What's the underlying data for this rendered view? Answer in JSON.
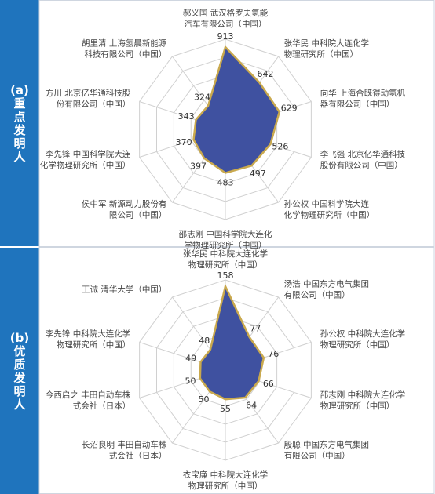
{
  "chart_data": [
    {
      "type": "radar",
      "panel_label": "(a)",
      "panel_title": "重点发明人",
      "color": "#3f51a0",
      "edge_color": "#c9a94e",
      "rlim": [
        0,
        1000
      ],
      "categories": [
        [
          "郝义国 武汉格罗夫氢能",
          "汽车有限公司（中国）"
        ],
        [
          "张华民 中科院大连化学",
          "物理研究所（中国）"
        ],
        [
          "向华 上海合既得动氢机",
          "器有限公司（中国）"
        ],
        [
          "李飞强 北京亿华通科技",
          "股份有限公司（中国）"
        ],
        [
          "孙公权 中国科学院大连",
          "化学物理研究所（中国）"
        ],
        [
          "邵志刚 中国科学院大连化",
          "学物理研究所（中国）"
        ],
        [
          "侯中军 新源动力股份有",
          "限公司（中国）"
        ],
        [
          "李先锋 中国科学院大连",
          "化学物理研究所（中国）"
        ],
        [
          "方川 北京亿华通科技股",
          "份有限公司（中国）"
        ],
        [
          "胡里清 上海氢晨新能源",
          "科技有限公司（中国）"
        ]
      ],
      "values": [
        913,
        642,
        629,
        526,
        497,
        483,
        397,
        370,
        343,
        324
      ]
    },
    {
      "type": "radar",
      "panel_label": "(b)",
      "panel_title": "优质发明人",
      "color": "#3f51a0",
      "edge_color": "#c9a94e",
      "rlim": [
        0,
        170
      ],
      "categories": [
        [
          "张华民 中科院大连化学",
          "物理研究所（中国）"
        ],
        [
          "汤浩 中国东方电气集团",
          "有限公司（中国）"
        ],
        [
          "孙公权 中科院大连化学",
          "物理研究所（中国）"
        ],
        [
          "邵志刚 中科院大连化学",
          "物理研究所（中国）"
        ],
        [
          "殷聪 中国东方电气集团",
          "有限公司（中国）"
        ],
        [
          "衣宝廉 中科院大连化学",
          "物理研究所（中国）"
        ],
        [
          "长沼良明 丰田自动车株",
          "式会社（日本）"
        ],
        [
          "今西启之 丰田自动车株",
          "式会社（日本）"
        ],
        [
          "李先锋 中科院大连化学",
          "物理研究所（中国）"
        ],
        [
          "王诚 清华大学（中国）"
        ]
      ],
      "values": [
        158,
        77,
        76,
        66,
        64,
        55,
        50,
        50,
        49,
        48
      ]
    }
  ]
}
